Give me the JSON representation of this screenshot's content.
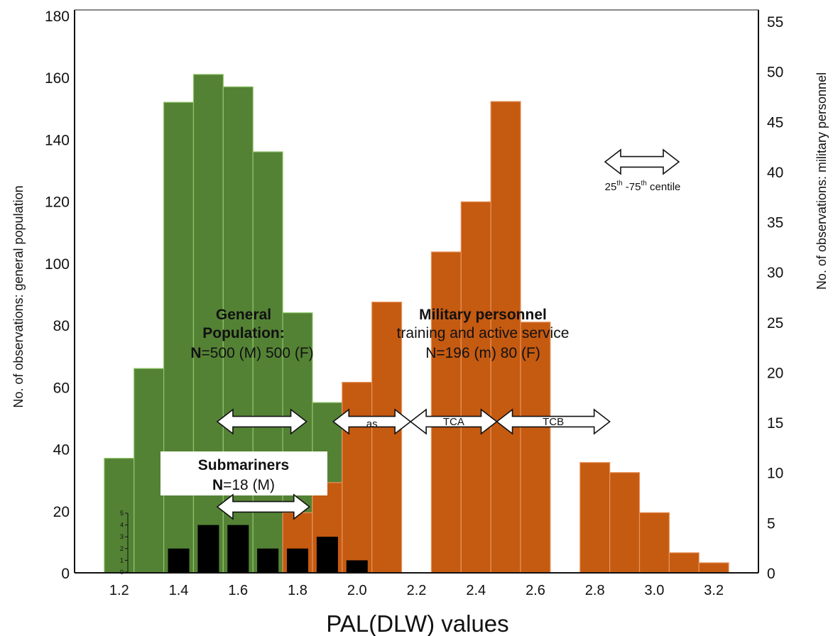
{
  "chart_data": {
    "type": "bar",
    "xlabel": "PAL(DLW) values",
    "ylabel_left": "No. of observations: general population",
    "ylabel_right": "No. of observations: military personnel",
    "x_ticks": [
      "1.2",
      "1.4",
      "1.6",
      "1.8",
      "2.0",
      "2.2",
      "2.4",
      "2.6",
      "2.8",
      "3.0",
      "3.2"
    ],
    "y_left_ticks": [
      "0",
      "20",
      "40",
      "60",
      "80",
      "100",
      "120",
      "140",
      "160",
      "180"
    ],
    "y_right_ticks": [
      "0",
      "5",
      "10",
      "15",
      "20",
      "25",
      "30",
      "35",
      "40",
      "45",
      "50",
      "55"
    ],
    "xlim": [
      1.05,
      3.35
    ],
    "ylim_left": [
      0,
      180
    ],
    "ylim_right": [
      0,
      55
    ],
    "series": [
      {
        "name": "General Population",
        "axis": "left",
        "color": "#548235",
        "bin_width": 0.1,
        "bins": [
          {
            "x": 1.2,
            "value": 37
          },
          {
            "x": 1.3,
            "value": 66
          },
          {
            "x": 1.4,
            "value": 152
          },
          {
            "x": 1.5,
            "value": 161
          },
          {
            "x": 1.6,
            "value": 157
          },
          {
            "x": 1.7,
            "value": 136
          },
          {
            "x": 1.8,
            "value": 84
          },
          {
            "x": 1.9,
            "value": 55
          }
        ]
      },
      {
        "name": "Military personnel",
        "axis": "right",
        "color": "#C55A11",
        "bin_width": 0.1,
        "bins": [
          {
            "x": 1.8,
            "value": 6
          },
          {
            "x": 1.9,
            "value": 9
          },
          {
            "x": 2.0,
            "value": 19
          },
          {
            "x": 2.1,
            "value": 27
          },
          {
            "x": 2.3,
            "value": 32
          },
          {
            "x": 2.4,
            "value": 37
          },
          {
            "x": 2.5,
            "value": 47
          },
          {
            "x": 2.6,
            "value": 25
          },
          {
            "x": 2.8,
            "value": 11
          },
          {
            "x": 2.9,
            "value": 10
          },
          {
            "x": 3.0,
            "value": 6
          },
          {
            "x": 3.1,
            "value": 2
          },
          {
            "x": 3.2,
            "value": 1
          }
        ]
      },
      {
        "name": "Submariners",
        "axis": "inset",
        "color": "#000000",
        "bin_width": 0.1,
        "bins": [
          {
            "x": 1.4,
            "value": 2
          },
          {
            "x": 1.5,
            "value": 4
          },
          {
            "x": 1.6,
            "value": 4
          },
          {
            "x": 1.7,
            "value": 2
          },
          {
            "x": 1.8,
            "value": 2
          },
          {
            "x": 1.9,
            "value": 3
          },
          {
            "x": 2.0,
            "value": 1
          }
        ],
        "inset_ticks": [
          "0",
          "1",
          "2",
          "3",
          "4",
          "5"
        ],
        "inset_ylim": [
          0,
          5
        ]
      }
    ],
    "ranges": [
      {
        "name": "general-population-iqr",
        "from": 1.53,
        "to": 1.83
      },
      {
        "name": "as",
        "label": "as",
        "from": 1.92,
        "to": 2.18
      },
      {
        "name": "tca",
        "label": "TCA",
        "from": 2.18,
        "to": 2.47
      },
      {
        "name": "tcb",
        "label": "TCB",
        "from": 2.47,
        "to": 2.85
      },
      {
        "name": "submariners-iqr",
        "from": 1.53,
        "to": 1.84
      }
    ],
    "annotations": {
      "general_title_1": "General",
      "general_title_2": "Population:",
      "general_n_bold": "N",
      "general_n_rest": "=500 (M) 500 (F)",
      "military_title": "Military personnel",
      "military_sub": "training and active service",
      "military_n": "N=196 (m) 80 (F)",
      "sub_title": "Submariners",
      "sub_n_bold": "N",
      "sub_n_rest": "=18 (M)",
      "legend_base_1": "25",
      "legend_sup_1": "th",
      "legend_mid": " -75",
      "legend_sup_2": "th",
      "legend_end": " centile"
    }
  }
}
